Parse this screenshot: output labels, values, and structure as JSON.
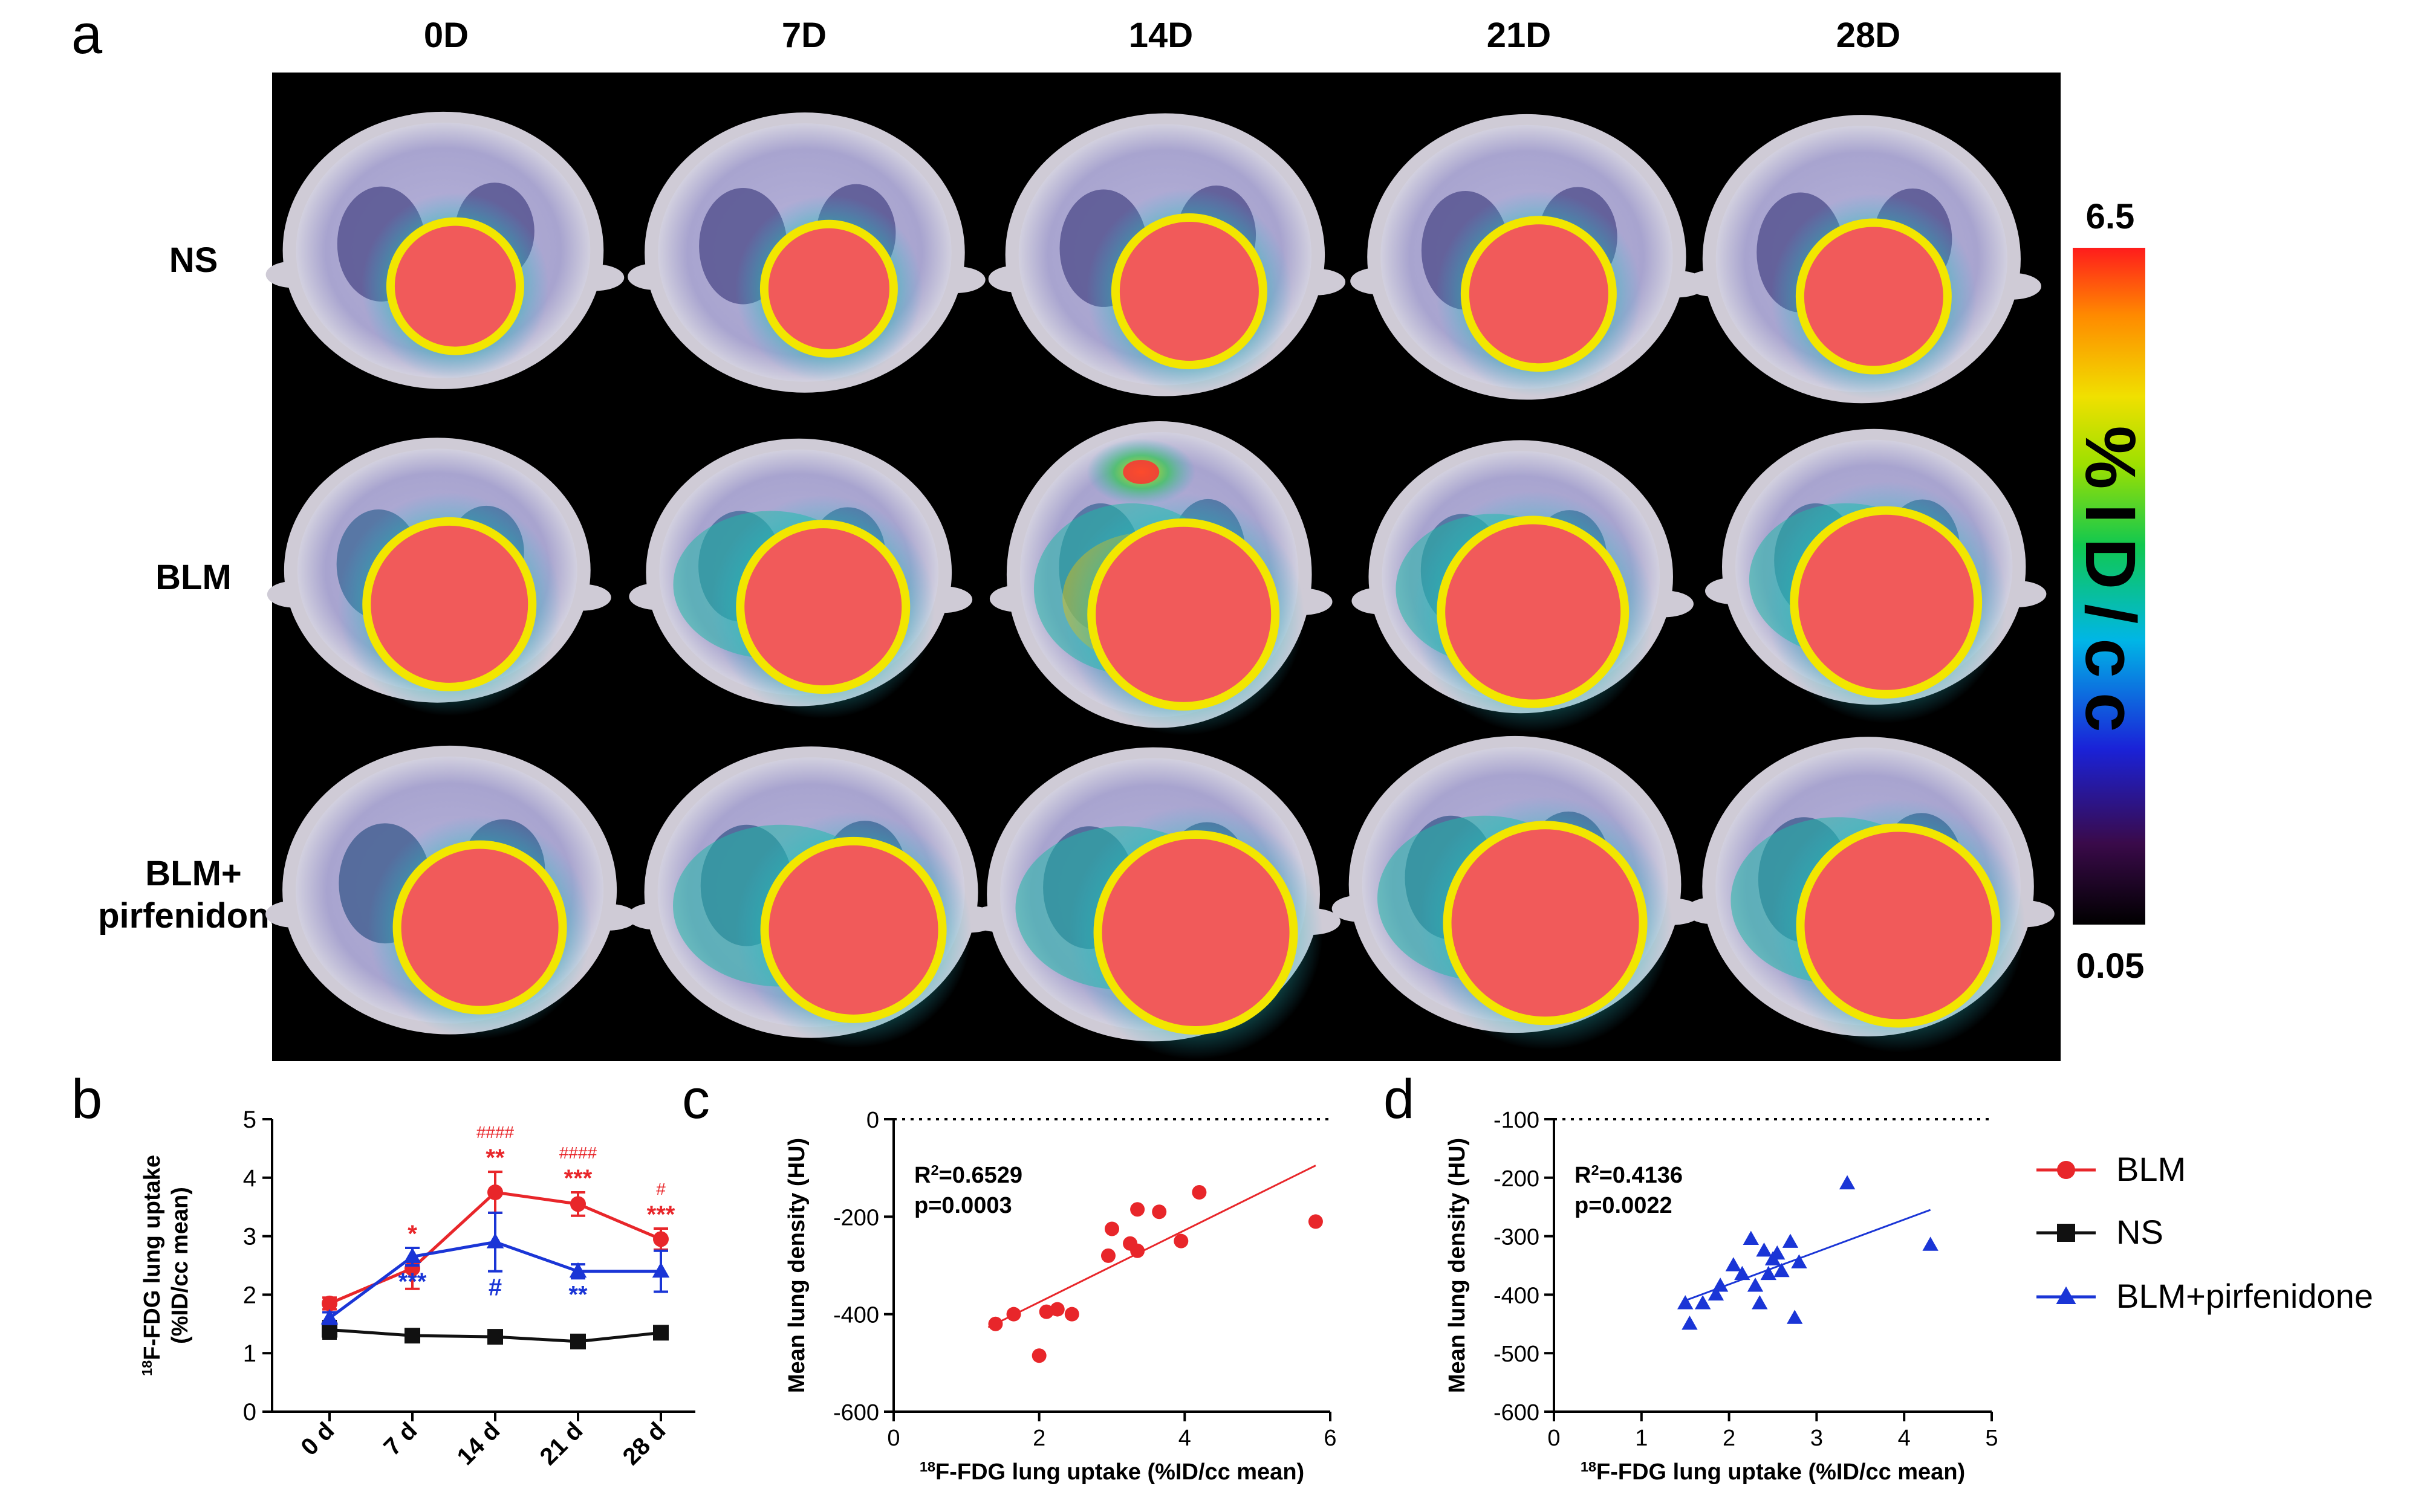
{
  "figure": {
    "panel_labels": [
      "a",
      "b",
      "c",
      "d"
    ]
  },
  "panel_a": {
    "columns": [
      "0D",
      "7D",
      "14D",
      "21D",
      "28D"
    ],
    "rows": [
      [
        "NS"
      ],
      [
        "BLM"
      ],
      [
        "BLM+",
        "pirfenidone"
      ]
    ],
    "colorbar": {
      "max": "6.5",
      "min": "0.05",
      "label": "%ID/cc"
    }
  },
  "legend": {
    "items": [
      {
        "label": "BLM",
        "color": "#e8262a",
        "marker": "circle"
      },
      {
        "label": "NS",
        "color": "#111111",
        "marker": "square"
      },
      {
        "label": "BLM+pirfenidone",
        "color": "#1a35d6",
        "marker": "triangle"
      }
    ]
  },
  "chart_data": [
    {
      "panel": "b",
      "type": "line",
      "xlabel": "",
      "ylabel": [
        "18F-FDG lung uptake",
        "(%ID/cc mean)"
      ],
      "categories": [
        "0 d",
        "7 d",
        "14 d",
        "21 d",
        "28 d"
      ],
      "ylim": [
        0,
        5
      ],
      "yticks": [
        "0",
        "1",
        "2",
        "3",
        "4",
        "5"
      ],
      "series": [
        {
          "name": "BLM",
          "color": "#e8262a",
          "marker": "circle",
          "values": [
            1.85,
            2.45,
            3.75,
            3.55,
            2.95
          ],
          "errors": [
            0.1,
            0.35,
            0.35,
            0.2,
            0.18
          ],
          "annotations": [
            "",
            "*",
            "**",
            "***",
            "***"
          ],
          "hash_annotations": [
            "",
            "",
            "####",
            "####",
            "#"
          ]
        },
        {
          "name": "NS",
          "color": "#111111",
          "marker": "square",
          "values": [
            1.4,
            1.3,
            1.28,
            1.2,
            1.35
          ],
          "errors": [
            0.15,
            0.06,
            0.06,
            0.06,
            0.06
          ]
        },
        {
          "name": "BLM+pirfenidone",
          "color": "#1a35d6",
          "marker": "triangle",
          "values": [
            1.6,
            2.65,
            2.9,
            2.4,
            2.4
          ],
          "errors": [
            0.1,
            0.15,
            0.5,
            0.12,
            0.35
          ],
          "annotations": [
            "",
            "***",
            "#",
            "**",
            ""
          ]
        }
      ]
    },
    {
      "panel": "c",
      "type": "scatter",
      "xlabel": "18F-FDG lung uptake (%ID/cc mean)",
      "ylabel": "Mean lung density (HU)",
      "xlim": [
        0,
        6
      ],
      "ylim": [
        -600,
        0
      ],
      "xticks": [
        "0",
        "2",
        "4",
        "6"
      ],
      "yticks": [
        "0",
        "-200",
        "-400",
        "-600"
      ],
      "reference_line_y": 0,
      "stats": [
        "R2=0.6529",
        "p=0.0003"
      ],
      "color": "#e8262a",
      "marker": "circle",
      "points": [
        [
          1.4,
          -420
        ],
        [
          1.65,
          -400
        ],
        [
          2.0,
          -485
        ],
        [
          2.1,
          -395
        ],
        [
          2.25,
          -390
        ],
        [
          2.45,
          -400
        ],
        [
          2.95,
          -280
        ],
        [
          3.0,
          -225
        ],
        [
          3.25,
          -255
        ],
        [
          3.35,
          -185
        ],
        [
          3.35,
          -270
        ],
        [
          3.65,
          -190
        ],
        [
          3.95,
          -250
        ],
        [
          4.2,
          -150
        ],
        [
          5.8,
          -210
        ]
      ],
      "fit": {
        "x": [
          1.3,
          5.8
        ],
        "y": [
          -427,
          -95
        ]
      }
    },
    {
      "panel": "d",
      "type": "scatter",
      "xlabel": "18F-FDG lung uptake (%ID/cc mean)",
      "ylabel": "Mean lung density (HU)",
      "xlim": [
        0,
        5
      ],
      "ylim": [
        -600,
        -100
      ],
      "xticks": [
        "0",
        "1",
        "2",
        "3",
        "4",
        "5"
      ],
      "yticks": [
        "-100",
        "-200",
        "-300",
        "-400",
        "-500",
        "-600"
      ],
      "reference_line_y": -100,
      "stats": [
        "R2=0.4136",
        "p=0.0022"
      ],
      "color": "#1a35d6",
      "marker": "triangle",
      "points": [
        [
          1.5,
          -415
        ],
        [
          1.55,
          -450
        ],
        [
          1.7,
          -415
        ],
        [
          1.85,
          -400
        ],
        [
          1.9,
          -385
        ],
        [
          2.05,
          -350
        ],
        [
          2.15,
          -365
        ],
        [
          2.25,
          -305
        ],
        [
          2.3,
          -385
        ],
        [
          2.35,
          -415
        ],
        [
          2.4,
          -325
        ],
        [
          2.45,
          -365
        ],
        [
          2.5,
          -340
        ],
        [
          2.55,
          -330
        ],
        [
          2.6,
          -360
        ],
        [
          2.7,
          -310
        ],
        [
          2.75,
          -440
        ],
        [
          2.8,
          -345
        ],
        [
          3.35,
          -210
        ],
        [
          4.3,
          -315
        ]
      ],
      "fit": {
        "x": [
          1.5,
          4.3
        ],
        "y": [
          -410,
          -255
        ]
      }
    }
  ]
}
